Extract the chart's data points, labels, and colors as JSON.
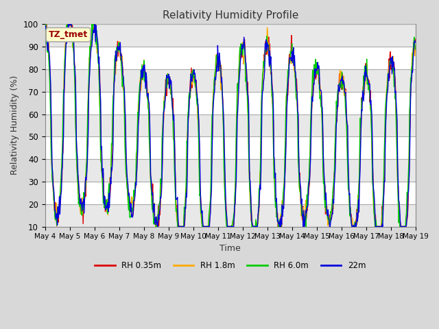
{
  "title": "Relativity Humidity Profile",
  "xlabel": "Time",
  "ylabel": "Relativity Humidity (%)",
  "ylim": [
    10,
    100
  ],
  "yticks": [
    10,
    20,
    30,
    40,
    50,
    60,
    70,
    80,
    90,
    100
  ],
  "background_color": "#d8d8d8",
  "plot_bg_color": "#d8d8d8",
  "grid_color": "#ffffff",
  "stripe_color": "#e8e8e8",
  "label_box_text": "TZ_tmet",
  "label_box_facecolor": "#ffffcc",
  "label_box_edgecolor": "#aaaaaa",
  "label_box_textcolor": "#990000",
  "legend_entries": [
    "RH 0.35m",
    "RH 1.8m",
    "RH 6.0m",
    "22m"
  ],
  "line_colors": [
    "#dd0000",
    "#ffaa00",
    "#00cc00",
    "#0000dd"
  ],
  "start_day": 4,
  "end_day": 19,
  "num_days": 15,
  "figwidth": 6.4,
  "figheight": 4.8,
  "dpi": 100
}
